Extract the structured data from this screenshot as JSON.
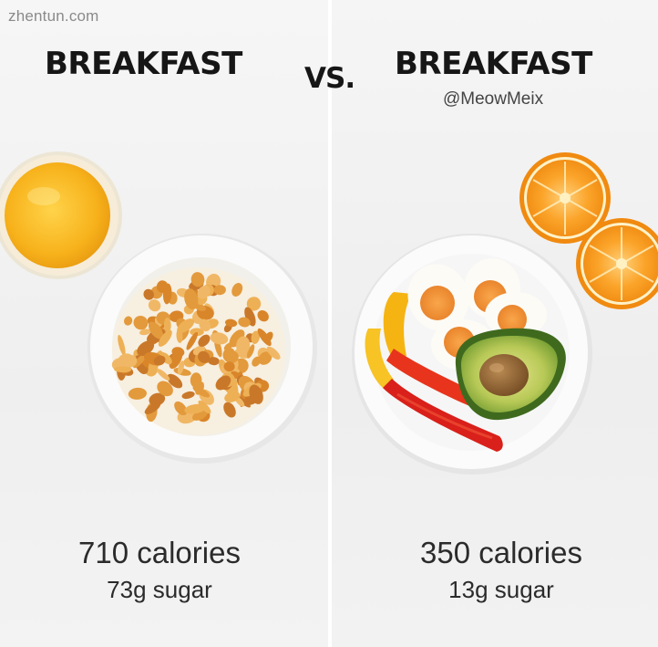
{
  "watermark": "zhentun.com",
  "left": {
    "title": "BREAKFAST",
    "calories": "710 calories",
    "sugar": "73g sugar"
  },
  "vs": "VS.",
  "right": {
    "title": "BREAKFAST",
    "handle": "@MeowMeix",
    "calories": "350 calories",
    "sugar": "13g sugar"
  },
  "colors": {
    "juice": "#f7b21b",
    "cereal": "#e39a3c",
    "orange": "#f79a1e",
    "pepper_red": "#e2261b",
    "pepper_yellow": "#f5b411",
    "avocado": "#5e8a2c",
    "text": "#161616"
  }
}
